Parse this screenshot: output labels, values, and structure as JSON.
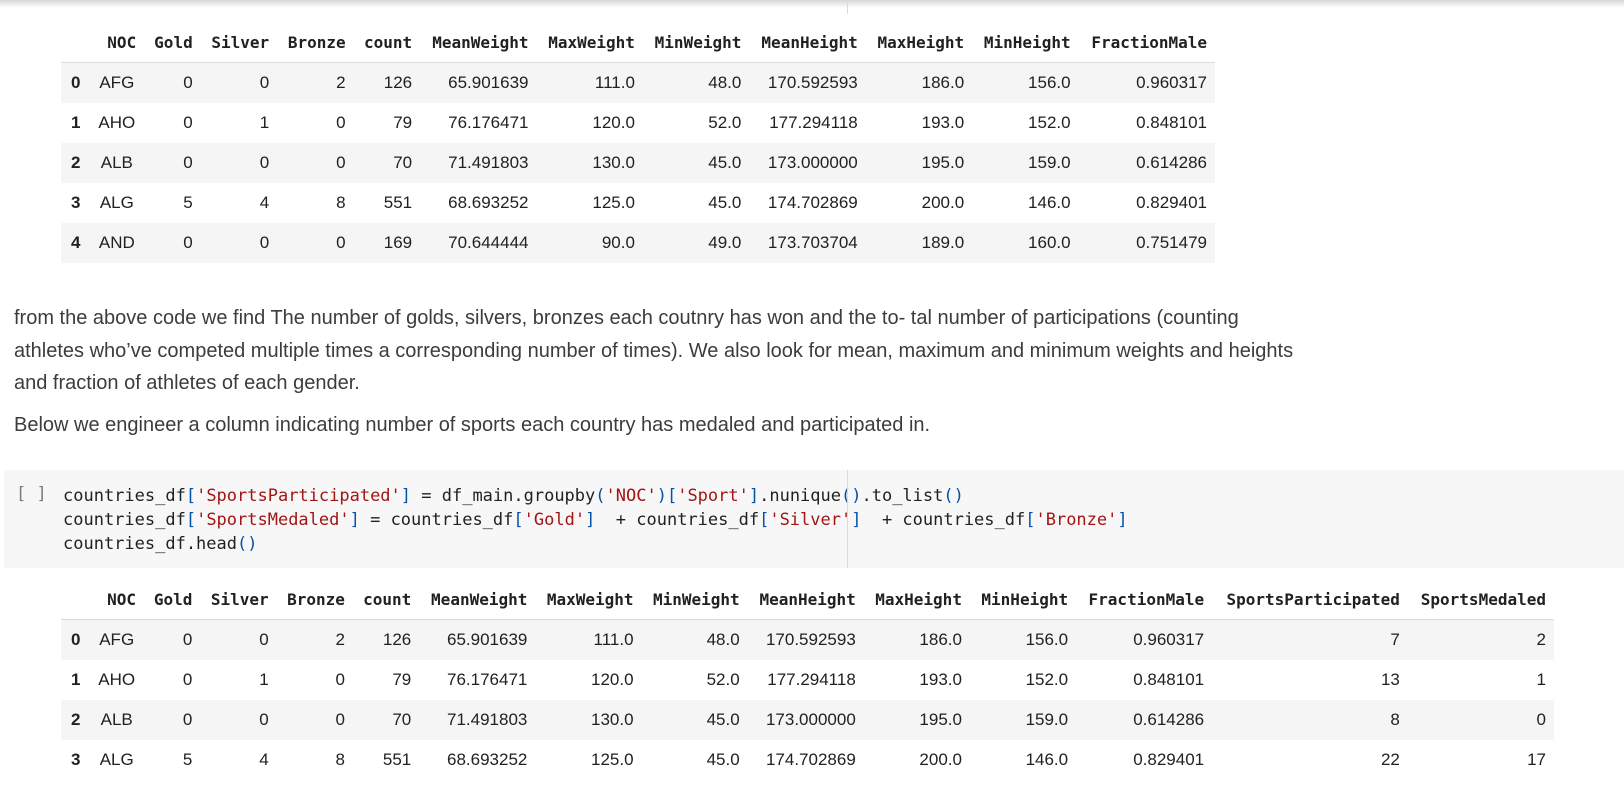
{
  "table_headers": [
    "",
    "NOC",
    "Gold",
    "Silver",
    "Bronze",
    "count",
    "MeanWeight",
    "MaxWeight",
    "MinWeight",
    "MeanHeight",
    "MaxHeight",
    "MinHeight",
    "FractionMale"
  ],
  "table1_rows": [
    [
      "0",
      "AFG",
      "0",
      "0",
      "2",
      "126",
      "65.901639",
      "111.0",
      "48.0",
      "170.592593",
      "186.0",
      "156.0",
      "0.960317"
    ],
    [
      "1",
      "AHO",
      "0",
      "1",
      "0",
      "79",
      "76.176471",
      "120.0",
      "52.0",
      "177.294118",
      "193.0",
      "152.0",
      "0.848101"
    ],
    [
      "2",
      "ALB",
      "0",
      "0",
      "0",
      "70",
      "71.491803",
      "130.0",
      "45.0",
      "173.000000",
      "195.0",
      "159.0",
      "0.614286"
    ],
    [
      "3",
      "ALG",
      "5",
      "4",
      "8",
      "551",
      "68.693252",
      "125.0",
      "45.0",
      "174.702869",
      "200.0",
      "146.0",
      "0.829401"
    ],
    [
      "4",
      "AND",
      "0",
      "0",
      "0",
      "169",
      "70.644444",
      "90.0",
      "49.0",
      "173.703704",
      "189.0",
      "160.0",
      "0.751479"
    ]
  ],
  "paragraph1": "from the above code we find The number of golds, silvers, bronzes each coutnry has won and the to- tal number of participations (counting athletes who’ve competed multiple times a corresponding number of times). We also look for mean, maximum and minimum weights and heights and fraction of athletes of each gender.",
  "paragraph2": "Below we engineer a column indicating number of sports each country has medaled and participated in.",
  "code_cell": {
    "run_indicator": "[ ]",
    "lines": [
      [
        {
          "t": "countries_df"
        },
        {
          "t": "[",
          "c": "br"
        },
        {
          "t": "'SportsParticipated'",
          "c": "str"
        },
        {
          "t": "]",
          "c": "br"
        },
        {
          "t": " = df_main.groupby"
        },
        {
          "t": "(",
          "c": "br"
        },
        {
          "t": "'NOC'",
          "c": "str"
        },
        {
          "t": ")",
          "c": "br"
        },
        {
          "t": "[",
          "c": "br"
        },
        {
          "t": "'Sport'",
          "c": "str"
        },
        {
          "t": "]",
          "c": "br"
        },
        {
          "t": ".nunique"
        },
        {
          "t": "()",
          "c": "br"
        },
        {
          "t": ".to_list"
        },
        {
          "t": "()",
          "c": "br"
        }
      ],
      [
        {
          "t": "countries_df"
        },
        {
          "t": "[",
          "c": "br"
        },
        {
          "t": "'SportsMedaled'",
          "c": "str"
        },
        {
          "t": "]",
          "c": "br"
        },
        {
          "t": " = countries_df"
        },
        {
          "t": "[",
          "c": "br"
        },
        {
          "t": "'Gold'",
          "c": "str"
        },
        {
          "t": "]",
          "c": "br"
        },
        {
          "t": "  + countries_df"
        },
        {
          "t": "[",
          "c": "br"
        },
        {
          "t": "'Silver'",
          "c": "str"
        },
        {
          "t": "]",
          "c": "br"
        },
        {
          "t": "  + countries_df"
        },
        {
          "t": "[",
          "c": "br"
        },
        {
          "t": "'Bronze'",
          "c": "str"
        },
        {
          "t": "]",
          "c": "br"
        }
      ],
      [
        {
          "t": "countries_df.head"
        },
        {
          "t": "()",
          "c": "br"
        }
      ]
    ]
  },
  "table2_headers": [
    "",
    "NOC",
    "Gold",
    "Silver",
    "Bronze",
    "count",
    "MeanWeight",
    "MaxWeight",
    "MinWeight",
    "MeanHeight",
    "MaxHeight",
    "MinHeight",
    "FractionMale",
    "SportsParticipated",
    "SportsMedaled"
  ],
  "table2_rows": [
    [
      "0",
      "AFG",
      "0",
      "0",
      "2",
      "126",
      "65.901639",
      "111.0",
      "48.0",
      "170.592593",
      "186.0",
      "156.0",
      "0.960317",
      "7",
      "2"
    ],
    [
      "1",
      "AHO",
      "0",
      "1",
      "0",
      "79",
      "76.176471",
      "120.0",
      "52.0",
      "177.294118",
      "193.0",
      "152.0",
      "0.848101",
      "13",
      "1"
    ],
    [
      "2",
      "ALB",
      "0",
      "0",
      "0",
      "70",
      "71.491803",
      "130.0",
      "45.0",
      "173.000000",
      "195.0",
      "159.0",
      "0.614286",
      "8",
      "0"
    ],
    [
      "3",
      "ALG",
      "5",
      "4",
      "8",
      "551",
      "68.693252",
      "125.0",
      "45.0",
      "174.702869",
      "200.0",
      "146.0",
      "0.829401",
      "22",
      "17"
    ]
  ]
}
